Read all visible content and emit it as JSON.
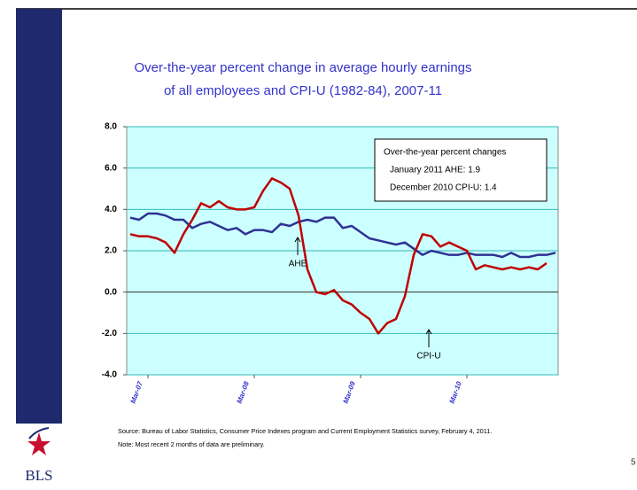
{
  "chart_data": {
    "type": "line",
    "title": [
      "Over-the-year percent change in average hourly earnings",
      "of all employees and CPI-U (1982-84), 2007-11"
    ],
    "categories": [
      null,
      null,
      "Mar-07",
      null,
      null,
      null,
      null,
      null,
      null,
      null,
      null,
      null,
      null,
      null,
      "Mar-08",
      null,
      null,
      null,
      null,
      null,
      null,
      null,
      null,
      null,
      null,
      null,
      "Mar-09",
      null,
      null,
      null,
      null,
      null,
      null,
      null,
      null,
      null,
      null,
      null,
      "Mar-10",
      null,
      null,
      null,
      null,
      null,
      null,
      null,
      null,
      null,
      null
    ],
    "series": [
      {
        "name": "AHE",
        "color": "#2e3192",
        "values": [
          3.6,
          3.5,
          3.8,
          3.8,
          3.7,
          3.5,
          3.5,
          3.1,
          3.3,
          3.4,
          3.2,
          3.0,
          3.1,
          2.8,
          3.0,
          3.0,
          2.9,
          3.3,
          3.2,
          3.4,
          3.5,
          3.4,
          3.6,
          3.6,
          3.1,
          3.2,
          2.9,
          2.6,
          2.5,
          2.4,
          2.3,
          2.4,
          2.1,
          1.8,
          2.0,
          1.9,
          1.8,
          1.8,
          1.9,
          1.8,
          1.8,
          1.8,
          1.7,
          1.9,
          1.7,
          1.7,
          1.8,
          1.8,
          1.9
        ]
      },
      {
        "name": "CPI-U",
        "color": "#c00000",
        "values": [
          2.8,
          2.7,
          2.7,
          2.6,
          2.4,
          1.9,
          2.8,
          3.5,
          4.3,
          4.1,
          4.4,
          4.1,
          4.0,
          4.0,
          4.1,
          4.9,
          5.5,
          5.3,
          5.0,
          3.7,
          1.1,
          0.0,
          -0.1,
          0.1,
          -0.4,
          -0.6,
          -1.0,
          -1.3,
          -2.0,
          -1.5,
          -1.3,
          -0.2,
          1.8,
          2.8,
          2.7,
          2.2,
          2.4,
          2.2,
          2.0,
          1.1,
          1.3,
          1.2,
          1.1,
          1.2,
          1.1,
          1.2,
          1.1,
          1.4,
          null
        ]
      }
    ],
    "ylim": [
      -4,
      8
    ],
    "yticks": [
      {
        "value": -4,
        "label": "-4.0"
      },
      {
        "value": -2,
        "label": "-2.0"
      },
      {
        "value": 0,
        "label": "0.0"
      },
      {
        "value": 2,
        "label": "2.0"
      },
      {
        "value": 4,
        "label": "4.0"
      },
      {
        "value": 6,
        "label": "6.0"
      },
      {
        "value": 8,
        "label": "8.0"
      }
    ],
    "grid": true,
    "info_box": [
      "Over-the-year percent changes",
      "January 2011 AHE: 1.9",
      "December 2010 CPI-U: 1.4"
    ],
    "source": "Source:  Bureau of Labor Statistics, Consumer Price Indexes program and Current Employment Statistics survey, February 4, 2011.",
    "note": "Note: Most recent 2 months of data are preliminary."
  },
  "logo_text": "BLS",
  "page_number": "5"
}
